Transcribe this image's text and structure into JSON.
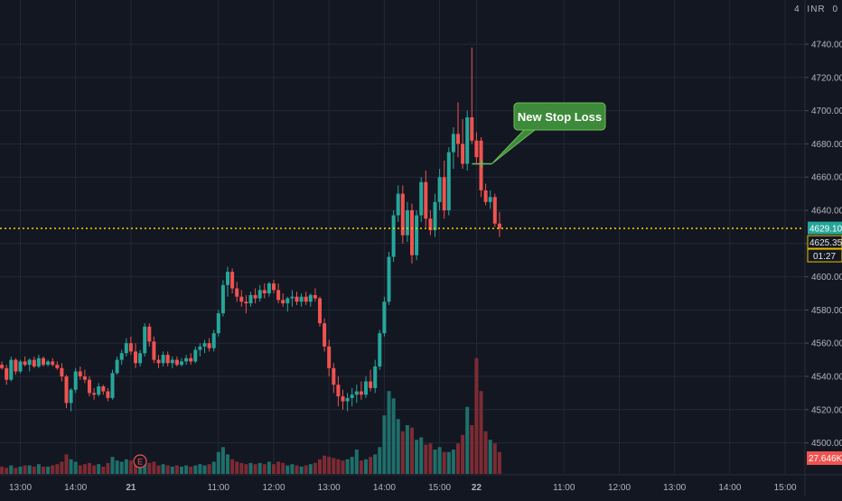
{
  "colors": {
    "background": "#131722",
    "grid": "#232836",
    "up": "#26a69a",
    "down": "#ef5350",
    "up_volume": "#1f6f6a",
    "down_volume": "#7d2b33",
    "last_price_line": "#f5d300",
    "axis_text": "#b2b5be",
    "annotation_fill": "#3d8a3a",
    "annotation_border": "#6fbf58",
    "annotation_line": "#6fbf58"
  },
  "header": {
    "scale_label": "4",
    "currency": "INR",
    "extra": "0"
  },
  "chart_data": {
    "type": "candlestick",
    "ylim": [
      4485,
      4752
    ],
    "y_ticks": [
      4500,
      4520,
      4540,
      4560,
      4580,
      4600,
      4620,
      4640,
      4660,
      4680,
      4700,
      4720,
      4740
    ],
    "y_tick_labels": [
      "4500.00",
      "4520.00",
      "4540.00",
      "4560.00",
      "4580.00",
      "4600.00",
      "4620.00",
      "4640.00",
      "4660.00",
      "4680.00",
      "4700.00",
      "4720.00",
      "4740.00"
    ],
    "x_labels": [
      {
        "i": 5,
        "label": "13:00",
        "bold": false
      },
      {
        "i": 17,
        "label": "14:00",
        "bold": false
      },
      {
        "i": 29,
        "label": "21",
        "bold": true
      },
      {
        "i": 48,
        "label": "11:00",
        "bold": false
      },
      {
        "i": 60,
        "label": "12:00",
        "bold": false
      },
      {
        "i": 72,
        "label": "13:00",
        "bold": false
      },
      {
        "i": 84,
        "label": "14:00",
        "bold": false
      },
      {
        "i": 96,
        "label": "15:00",
        "bold": false
      },
      {
        "i": 104,
        "label": "22",
        "bold": true
      },
      {
        "i": 123,
        "label": "11:00",
        "bold": false
      },
      {
        "i": 135,
        "label": "12:00",
        "bold": false
      },
      {
        "i": 147,
        "label": "13:00",
        "bold": false
      },
      {
        "i": 159,
        "label": "14:00",
        "bold": false
      },
      {
        "i": 171,
        "label": "15:00",
        "bold": false
      }
    ],
    "last_price": 4629.1,
    "last_price_label": "4629.10",
    "prev_close_label": "4625.35",
    "countdown_label": "01:27",
    "volume_label": "27.646K",
    "event_marker": {
      "i": 31,
      "label": "E"
    },
    "annotation": {
      "text": "New Stop Loss",
      "anchor_i": 104,
      "anchor_price": 4668
    },
    "candles": [
      [
        4548,
        4550,
        4545,
        4547
      ],
      [
        4547,
        4549,
        4544,
        4545
      ],
      [
        4545,
        4547,
        4535,
        4538
      ],
      [
        4538,
        4552,
        4537,
        4550
      ],
      [
        4550,
        4551,
        4541,
        4543
      ],
      [
        4543,
        4550,
        4542,
        4549
      ],
      [
        4549,
        4552,
        4546,
        4547
      ],
      [
        4547,
        4551,
        4543,
        4550
      ],
      [
        4550,
        4552,
        4545,
        4546
      ],
      [
        4546,
        4553,
        4545,
        4551
      ],
      [
        4551,
        4552,
        4546,
        4547
      ],
      [
        4547,
        4550,
        4546,
        4549
      ],
      [
        4549,
        4551,
        4546,
        4547
      ],
      [
        4547,
        4549,
        4544,
        4545
      ],
      [
        4545,
        4548,
        4537,
        4540
      ],
      [
        4540,
        4541,
        4521,
        4524
      ],
      [
        4524,
        4533,
        4519,
        4532
      ],
      [
        4532,
        4545,
        4530,
        4543
      ],
      [
        4543,
        4546,
        4538,
        4540
      ],
      [
        4540,
        4544,
        4536,
        4538
      ],
      [
        4538,
        4540,
        4528,
        4530
      ],
      [
        4530,
        4533,
        4526,
        4529
      ],
      [
        4529,
        4536,
        4528,
        4534
      ],
      [
        4534,
        4535,
        4529,
        4531
      ],
      [
        4531,
        4533,
        4525,
        4527
      ],
      [
        4527,
        4544,
        4526,
        4542
      ],
      [
        4542,
        4552,
        4541,
        4550
      ],
      [
        4550,
        4556,
        4547,
        4554
      ],
      [
        4554,
        4563,
        4552,
        4560
      ],
      [
        4560,
        4564,
        4553,
        4555
      ],
      [
        4555,
        4560,
        4545,
        4548
      ],
      [
        4548,
        4556,
        4546,
        4554
      ],
      [
        4554,
        4572,
        4552,
        4570
      ],
      [
        4570,
        4572,
        4558,
        4561
      ],
      [
        4561,
        4564,
        4548,
        4550
      ],
      [
        4550,
        4553,
        4545,
        4548
      ],
      [
        4548,
        4555,
        4546,
        4553
      ],
      [
        4553,
        4555,
        4546,
        4548
      ],
      [
        4548,
        4552,
        4545,
        4550
      ],
      [
        4550,
        4552,
        4546,
        4547
      ],
      [
        4547,
        4551,
        4546,
        4549
      ],
      [
        4549,
        4553,
        4547,
        4551
      ],
      [
        4551,
        4554,
        4547,
        4549
      ],
      [
        4549,
        4558,
        4548,
        4556
      ],
      [
        4556,
        4560,
        4552,
        4558
      ],
      [
        4558,
        4562,
        4554,
        4560
      ],
      [
        4560,
        4563,
        4555,
        4557
      ],
      [
        4557,
        4568,
        4555,
        4566
      ],
      [
        4566,
        4580,
        4564,
        4578
      ],
      [
        4578,
        4598,
        4576,
        4595
      ],
      [
        4595,
        4606,
        4588,
        4603
      ],
      [
        4603,
        4605,
        4590,
        4593
      ],
      [
        4593,
        4597,
        4585,
        4588
      ],
      [
        4588,
        4592,
        4582,
        4585
      ],
      [
        4585,
        4589,
        4578,
        4584
      ],
      [
        4584,
        4591,
        4582,
        4589
      ],
      [
        4589,
        4593,
        4584,
        4587
      ],
      [
        4587,
        4595,
        4585,
        4592
      ],
      [
        4592,
        4596,
        4587,
        4590
      ],
      [
        4590,
        4597,
        4588,
        4596
      ],
      [
        4596,
        4598,
        4590,
        4592
      ],
      [
        4592,
        4596,
        4584,
        4586
      ],
      [
        4586,
        4590,
        4582,
        4584
      ],
      [
        4584,
        4588,
        4579,
        4587
      ],
      [
        4587,
        4592,
        4582,
        4588
      ],
      [
        4588,
        4591,
        4583,
        4585
      ],
      [
        4585,
        4590,
        4582,
        4588
      ],
      [
        4588,
        4591,
        4583,
        4585
      ],
      [
        4585,
        4590,
        4582,
        4589
      ],
      [
        4589,
        4593,
        4585,
        4587
      ],
      [
        4587,
        4588,
        4570,
        4572
      ],
      [
        4572,
        4575,
        4555,
        4558
      ],
      [
        4558,
        4562,
        4540,
        4545
      ],
      [
        4545,
        4548,
        4530,
        4535
      ],
      [
        4535,
        4540,
        4522,
        4528
      ],
      [
        4528,
        4532,
        4520,
        4525
      ],
      [
        4525,
        4530,
        4519,
        4527
      ],
      [
        4527,
        4533,
        4522,
        4529
      ],
      [
        4529,
        4535,
        4524,
        4531
      ],
      [
        4531,
        4537,
        4526,
        4529
      ],
      [
        4529,
        4540,
        4527,
        4537
      ],
      [
        4537,
        4544,
        4531,
        4533
      ],
      [
        4533,
        4550,
        4530,
        4546
      ],
      [
        4546,
        4568,
        4544,
        4566
      ],
      [
        4566,
        4588,
        4564,
        4585
      ],
      [
        4585,
        4615,
        4583,
        4612
      ],
      [
        4612,
        4640,
        4609,
        4637
      ],
      [
        4637,
        4655,
        4633,
        4650
      ],
      [
        4650,
        4655,
        4620,
        4625
      ],
      [
        4625,
        4645,
        4621,
        4640
      ],
      [
        4640,
        4644,
        4608,
        4613
      ],
      [
        4613,
        4640,
        4610,
        4637
      ],
      [
        4637,
        4660,
        4633,
        4657
      ],
      [
        4657,
        4664,
        4630,
        4635
      ],
      [
        4635,
        4640,
        4625,
        4628
      ],
      [
        4628,
        4650,
        4624,
        4645
      ],
      [
        4645,
        4665,
        4640,
        4660
      ],
      [
        4660,
        4670,
        4635,
        4640
      ],
      [
        4640,
        4678,
        4637,
        4675
      ],
      [
        4675,
        4690,
        4665,
        4686
      ],
      [
        4686,
        4705,
        4672,
        4680
      ],
      [
        4680,
        4695,
        4665,
        4668
      ],
      [
        4668,
        4700,
        4664,
        4696
      ],
      [
        4696,
        4738,
        4680,
        4682
      ],
      [
        4682,
        4687,
        4668,
        4672
      ],
      [
        4682,
        4684,
        4648,
        4652
      ],
      [
        4652,
        4656,
        4643,
        4645
      ],
      [
        4645,
        4652,
        4641,
        4648
      ],
      [
        4648,
        4650,
        4630,
        4632
      ],
      [
        4632,
        4639,
        4624,
        4629
      ]
    ],
    "volume_ratio": [
      0.06,
      0.06,
      0.05,
      0.07,
      0.05,
      0.06,
      0.07,
      0.07,
      0.06,
      0.08,
      0.06,
      0.06,
      0.07,
      0.08,
      0.1,
      0.16,
      0.12,
      0.1,
      0.07,
      0.08,
      0.09,
      0.07,
      0.08,
      0.06,
      0.09,
      0.14,
      0.11,
      0.1,
      0.12,
      0.11,
      0.1,
      0.08,
      0.12,
      0.09,
      0.1,
      0.07,
      0.08,
      0.07,
      0.06,
      0.07,
      0.06,
      0.07,
      0.06,
      0.07,
      0.08,
      0.07,
      0.08,
      0.1,
      0.18,
      0.22,
      0.16,
      0.12,
      0.1,
      0.09,
      0.08,
      0.09,
      0.08,
      0.09,
      0.08,
      0.1,
      0.08,
      0.1,
      0.09,
      0.07,
      0.08,
      0.07,
      0.06,
      0.07,
      0.08,
      0.09,
      0.12,
      0.15,
      0.14,
      0.13,
      0.12,
      0.11,
      0.12,
      0.14,
      0.2,
      0.11,
      0.12,
      0.14,
      0.16,
      0.22,
      0.48,
      0.68,
      0.62,
      0.45,
      0.35,
      0.4,
      0.38,
      0.28,
      0.3,
      0.24,
      0.25,
      0.2,
      0.22,
      0.18,
      0.18,
      0.2,
      0.25,
      0.32,
      0.55,
      0.4,
      0.95,
      0.68,
      0.35,
      0.28,
      0.25,
      0.18
    ]
  }
}
